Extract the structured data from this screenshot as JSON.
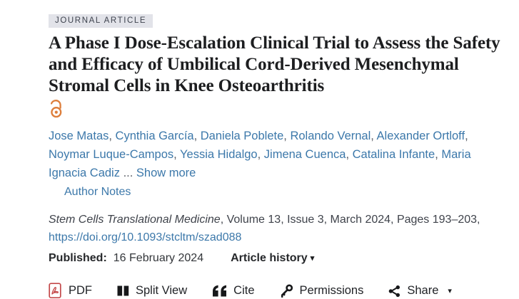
{
  "badge": {
    "label": "JOURNAL ARTICLE",
    "bg_color": "#e2e3e9",
    "text_color": "#3e434e"
  },
  "title": {
    "text": "A Phase I Dose-Escalation Clinical Trial to Assess the Safety and Efficacy of Umbilical Cord-Derived Mesenchymal Stromal Cells in Knee Osteoarthritis"
  },
  "open_access": {
    "icon": "open-access-unlocked-padlock",
    "color": "#dd7e3b"
  },
  "authors": {
    "names": [
      "Jose Matas",
      "Cynthia García",
      "Daniela Poblete",
      "Rolando Vernal",
      "Alexander Ortloff",
      "Noymar Luque-Campos",
      "Yessia Hidalgo",
      "Jimena Cuenca",
      "Catalina Infante",
      "Maria Ignacia Cadiz"
    ],
    "separator": ", ",
    "ellipsis": " ... ",
    "show_more_label": "Show more",
    "author_notes_label": "Author Notes",
    "link_color": "#3c78aa"
  },
  "citation": {
    "journal": "Stem Cells Translational Medicine",
    "details": ", Volume 13, Issue 3, March 2024, Pages 193–203,",
    "doi": "https://doi.org/10.1093/stcltm/szad088"
  },
  "published": {
    "label": "Published:",
    "date": "16 February 2024",
    "article_history_label": "Article history",
    "dropdown_arrow": "▾"
  },
  "toolbar": {
    "items": [
      {
        "icon": "pdf-icon",
        "label": "PDF"
      },
      {
        "icon": "split-view-icon",
        "label": "Split View"
      },
      {
        "icon": "cite-quote-icon",
        "label": "Cite"
      },
      {
        "icon": "permissions-key-icon",
        "label": "Permissions"
      },
      {
        "icon": "share-icon",
        "label": "Share",
        "arrow": "▾"
      }
    ],
    "pdf_icon_color": "#c4494a",
    "icon_color": "#17181a"
  }
}
